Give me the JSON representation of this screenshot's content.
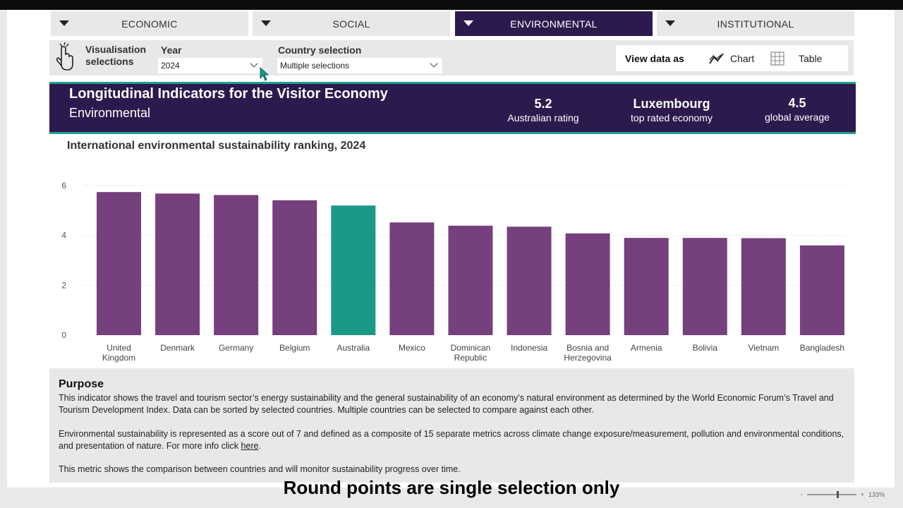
{
  "tabs": [
    {
      "label": "ECONOMIC"
    },
    {
      "label": "SOCIAL"
    },
    {
      "label": "ENVIRONMENTAL"
    },
    {
      "label": "INSTITUTIONAL"
    }
  ],
  "selections": {
    "title": "Visualisation selections",
    "year_label": "Year",
    "year_value": "2024",
    "country_label": "Country selection",
    "country_value": "Multiple selections",
    "view_label": "View data as",
    "chart_label": "Chart",
    "table_label": "Table"
  },
  "banner": {
    "title": "Longitudinal Indicators for the Visitor Economy",
    "subtitle": "Environmental",
    "stats": [
      {
        "value": "5.2",
        "label": "Australian rating"
      },
      {
        "value": "Luxembourg",
        "label": "top rated economy"
      },
      {
        "value": "4.5",
        "label": "global average"
      }
    ]
  },
  "chart_title": "International environmental sustainability ranking, 2024",
  "chart_data": {
    "type": "bar",
    "categories": [
      "United Kingdom",
      "Denmark",
      "Germany",
      "Belgium",
      "Australia",
      "Mexico",
      "Dominican Republic",
      "Indonesia",
      "Bosnia and Herzegovina",
      "Armenia",
      "Bolivia",
      "Vietnam",
      "Bangladesh"
    ],
    "category_lines": [
      [
        "United",
        "Kingdom"
      ],
      [
        "Denmark"
      ],
      [
        "Germany"
      ],
      [
        "Belgium"
      ],
      [
        "Australia"
      ],
      [
        "Mexico"
      ],
      [
        "Dominican",
        "Republic"
      ],
      [
        "Indonesia"
      ],
      [
        "Bosnia and",
        "Herzegovina"
      ],
      [
        "Armenia"
      ],
      [
        "Bolivia"
      ],
      [
        "Vietnam"
      ],
      [
        "Bangladesh"
      ]
    ],
    "values": [
      5.74,
      5.68,
      5.62,
      5.41,
      5.2,
      4.52,
      4.39,
      4.35,
      4.08,
      3.9,
      3.9,
      3.89,
      3.6
    ],
    "highlight": "Australia",
    "colors": {
      "default": "#763f7d",
      "highlight": "#1a9a86"
    },
    "yticks": [
      0,
      2,
      4,
      6
    ],
    "ylim": [
      0,
      6.3
    ],
    "grid": true
  },
  "purpose": {
    "title": "Purpose",
    "p1": "This indicator shows the travel and tourism sector’s energy sustainability and the general sustainability of an economy’s natural environment as determined by the World Economic Forum’s Travel and Tourism Development Index. Data can be sorted by selected countries. Multiple countries can be selected to compare against each other.",
    "p2_text": "Environmental sustainability is represented as a score out of 7 and defined as a composite of 15 separate metrics across climate change exposure/measurement, pollution and environmental conditions, and presentation of nature. For more info click ",
    "p2_link": "here",
    "p2_end": ".",
    "p3": "This metric shows the comparison between countries and will monitor sustainability progress over time."
  },
  "caption": "Round points are single selection only",
  "zoom_text": "133%"
}
